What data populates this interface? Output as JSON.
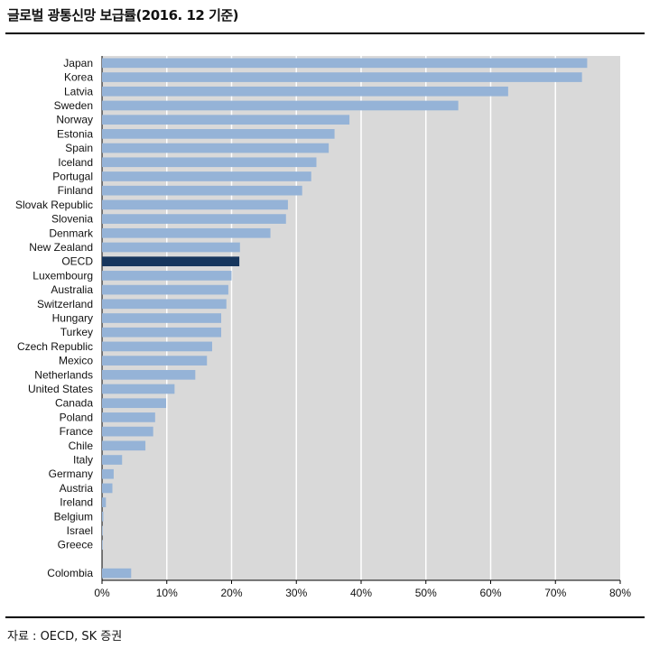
{
  "title": "글로벌 광통신망 보급률(2016. 12 기준)",
  "source": "자료 : OECD, SK 증권",
  "colors": {
    "bar": "#95b3d7",
    "highlight": "#17365d",
    "plot_bg": "#d9d9d9",
    "grid": "#ffffff"
  },
  "chart_data": {
    "type": "bar",
    "orientation": "horizontal",
    "title": "",
    "xlabel": "",
    "ylabel": "",
    "xlim": [
      0,
      80
    ],
    "tick_format": "percent",
    "ticks": [
      0,
      10,
      20,
      30,
      40,
      50,
      60,
      70,
      80
    ],
    "grid": true,
    "legend": "none",
    "highlight": "OECD",
    "categories": [
      "Japan",
      "Korea",
      "Latvia",
      "Sweden",
      "Norway",
      "Estonia",
      "Spain",
      "Iceland",
      "Portugal",
      "Finland",
      "Slovak Republic",
      "Slovenia",
      "Denmark",
      "New Zealand",
      "OECD",
      "Luxembourg",
      "Australia",
      "Switzerland",
      "Hungary",
      "Turkey",
      "Czech Republic",
      "Mexico",
      "Netherlands",
      "United States",
      "Canada",
      "Poland",
      "France",
      "Chile",
      "Italy",
      "Germany",
      "Austria",
      "Ireland",
      "Belgium",
      "Israel",
      "Greece",
      "",
      "Colombia"
    ],
    "values": [
      74.9,
      74.1,
      62.7,
      55.0,
      38.2,
      35.9,
      35.0,
      33.1,
      32.3,
      30.9,
      28.7,
      28.4,
      26.0,
      21.3,
      21.2,
      20.0,
      19.5,
      19.2,
      18.4,
      18.4,
      17.0,
      16.2,
      14.4,
      11.2,
      9.9,
      8.2,
      7.9,
      6.7,
      3.1,
      1.8,
      1.6,
      0.6,
      0.2,
      0.1,
      0.1,
      null,
      4.5
    ]
  }
}
